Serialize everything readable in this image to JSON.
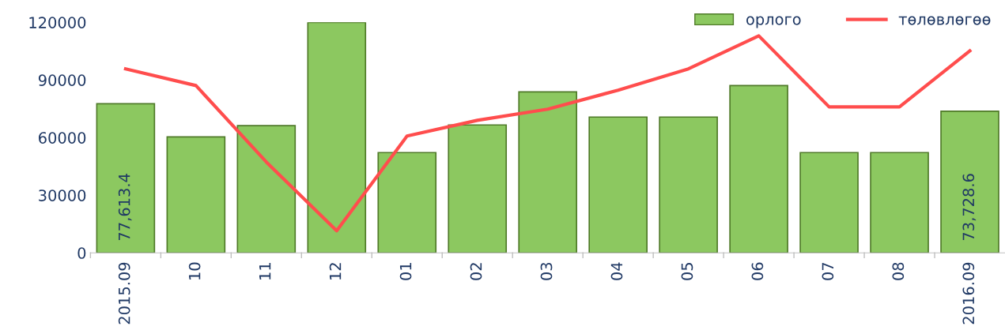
{
  "chart_data": {
    "type": "bar",
    "categories": [
      "2015.09",
      "10",
      "11",
      "12",
      "01",
      "02",
      "03",
      "04",
      "05",
      "06",
      "07",
      "08",
      "2016.09"
    ],
    "series": [
      {
        "name": "орлого",
        "color": "#8cc860",
        "values": [
          77613.4,
          60400,
          66200,
          120000,
          52200,
          66600,
          83800,
          70700,
          70700,
          87100,
          52200,
          52200,
          73728.6
        ],
        "value_labels": [
          "77,613.4",
          null,
          null,
          null,
          null,
          null,
          null,
          null,
          null,
          null,
          null,
          null,
          "73,728.6"
        ]
      },
      {
        "name": "төлөвлөгөө",
        "type": "line",
        "color": "#ff4d4d",
        "values": [
          95800,
          87100,
          47300,
          11500,
          60800,
          69000,
          74800,
          84700,
          95800,
          113000,
          76000,
          76000,
          105200
        ]
      }
    ],
    "ylim": [
      0,
      120000
    ],
    "yticks": [
      0,
      30000,
      60000,
      90000,
      120000
    ],
    "grid": false,
    "legend": "top right",
    "marker": "none",
    "line_style": "solid"
  }
}
